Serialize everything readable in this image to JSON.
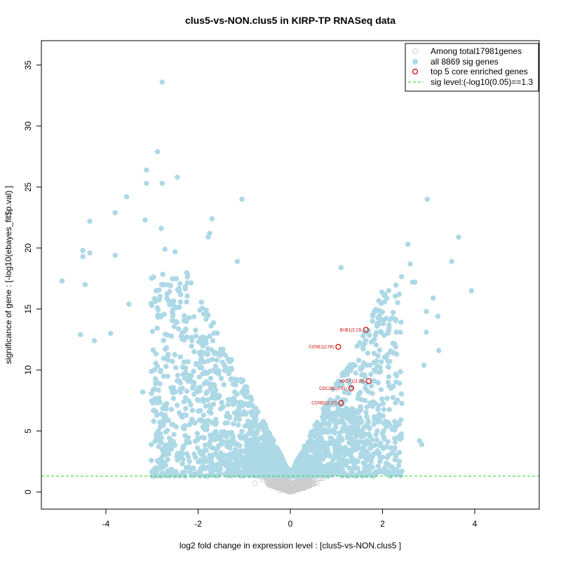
{
  "chart_data": {
    "type": "scatter",
    "title": "clus5-vs-NON.clus5 in KIRP-TP RNASeq data",
    "xlabel": "log2 fold change in expression level : [clus5-vs-NON.clus5 ]",
    "ylabel": "significance of gene : [-log10(ebayes_fit$p.val) ]",
    "xlim": [
      -5.4,
      5.4
    ],
    "ylim": [
      -1.4,
      37
    ],
    "x_ticks": [
      -4,
      -2,
      0,
      2,
      4
    ],
    "y_ticks": [
      0,
      5,
      10,
      15,
      20,
      25,
      30,
      35
    ],
    "grid": false,
    "legend_position": "top-right",
    "legend": [
      {
        "label": "Among total17981genes",
        "marker": "open-circle",
        "color": "#cccccc"
      },
      {
        "label": "all 8869 sig genes",
        "marker": "filled-circle",
        "color": "#add8e6"
      },
      {
        "label": "top 5 core enriched genes",
        "marker": "open-circle",
        "color": "#cc0000"
      },
      {
        "label": "sig level:(-log10(0.05)==1.3",
        "marker": "dashed-line",
        "color": "#22cc22"
      }
    ],
    "sig_level": 1.3,
    "colors": {
      "nonsig": "#cccccc",
      "sig": "#add8e6",
      "core": "#cc0000",
      "threshold": "#22cc22"
    },
    "top_genes": [
      {
        "label": "BUB1(3.13)",
        "x": 1.64,
        "y": 13.3
      },
      {
        "label": "CCNE1(2.06)",
        "x": 1.04,
        "y": 11.9
      },
      {
        "label": "ADCY1(3.29)",
        "x": 1.7,
        "y": 9.1
      },
      {
        "label": "CDC25C(2.51)",
        "x": 1.32,
        "y": 8.5
      },
      {
        "label": "CCNB2(2.17)",
        "x": 1.1,
        "y": 7.3
      }
    ],
    "outlier_points": [
      {
        "x": -2.78,
        "y": 33.6
      },
      {
        "x": -2.88,
        "y": 27.9
      },
      {
        "x": -3.12,
        "y": 26.4
      },
      {
        "x": -3.12,
        "y": 25.3
      },
      {
        "x": -2.78,
        "y": 25.3
      },
      {
        "x": -2.45,
        "y": 25.8
      },
      {
        "x": -3.55,
        "y": 24.2
      },
      {
        "x": -3.8,
        "y": 22.9
      },
      {
        "x": -4.35,
        "y": 22.2
      },
      {
        "x": -3.15,
        "y": 22.3
      },
      {
        "x": -2.8,
        "y": 21.6
      },
      {
        "x": -1.05,
        "y": 24.0
      },
      {
        "x": -1.7,
        "y": 22.4
      },
      {
        "x": -1.75,
        "y": 21.2
      },
      {
        "x": -1.78,
        "y": 20.9
      },
      {
        "x": -4.5,
        "y": 19.8
      },
      {
        "x": -4.5,
        "y": 19.3
      },
      {
        "x": -4.35,
        "y": 19.6
      },
      {
        "x": -3.8,
        "y": 19.4
      },
      {
        "x": -2.72,
        "y": 19.9
      },
      {
        "x": -2.5,
        "y": 19.7
      },
      {
        "x": -4.95,
        "y": 17.3
      },
      {
        "x": -4.45,
        "y": 17.0
      },
      {
        "x": -1.15,
        "y": 18.9
      },
      {
        "x": -4.55,
        "y": 12.9
      },
      {
        "x": -4.25,
        "y": 12.4
      },
      {
        "x": -3.9,
        "y": 13.0
      },
      {
        "x": -3.5,
        "y": 15.4
      },
      {
        "x": -3.2,
        "y": 8.2
      },
      {
        "x": -2.7,
        "y": 7.0
      },
      {
        "x": 2.97,
        "y": 24.0
      },
      {
        "x": 3.65,
        "y": 20.9
      },
      {
        "x": 2.55,
        "y": 20.3
      },
      {
        "x": 3.5,
        "y": 18.9
      },
      {
        "x": 2.6,
        "y": 18.7
      },
      {
        "x": 3.93,
        "y": 16.5
      },
      {
        "x": 3.1,
        "y": 15.9
      },
      {
        "x": 2.95,
        "y": 14.8
      },
      {
        "x": 3.2,
        "y": 14.4
      },
      {
        "x": 2.65,
        "y": 17.2
      },
      {
        "x": 2.7,
        "y": 17.2
      },
      {
        "x": 3.22,
        "y": 11.6
      },
      {
        "x": 2.9,
        "y": 10.4
      },
      {
        "x": 2.8,
        "y": 4.2
      },
      {
        "x": 2.85,
        "y": 3.9
      },
      {
        "x": 2.35,
        "y": 4.5
      },
      {
        "x": 1.1,
        "y": 18.4
      },
      {
        "x": 2.95,
        "y": 13.1
      }
    ]
  }
}
